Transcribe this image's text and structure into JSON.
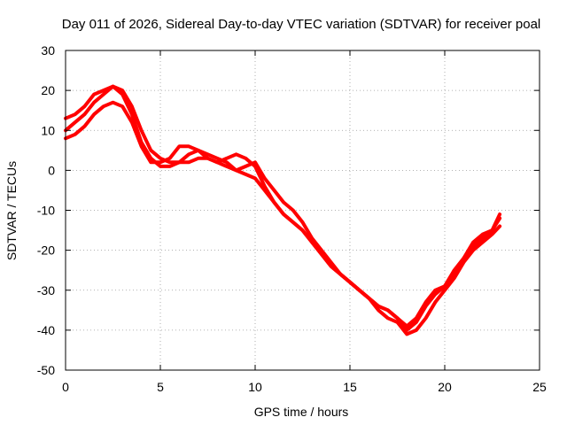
{
  "chart_data": {
    "type": "line",
    "title": "Day 011 of 2026, Sidereal Day-to-day VTEC variation (SDTVAR) for receiver poal",
    "xlabel": "GPS time / hours",
    "ylabel": "SDTVAR / TECUs",
    "xlim": [
      0,
      25
    ],
    "ylim": [
      -50,
      30
    ],
    "xticks": [
      0,
      5,
      10,
      15,
      20,
      25
    ],
    "yticks": [
      -50,
      -40,
      -30,
      -20,
      -10,
      0,
      10,
      20,
      30
    ],
    "grid": true,
    "series": [
      {
        "name": "trace-1",
        "color": "#ff0000",
        "x": [
          0.0,
          0.5,
          1.0,
          1.5,
          2.0,
          2.5,
          3.0,
          3.5,
          4.0,
          4.5,
          5.0,
          5.5,
          6.0,
          6.5,
          7.0,
          7.5,
          8.0,
          8.5,
          9.0,
          9.5,
          10.0,
          10.5,
          11.0,
          11.5,
          12.0,
          12.5,
          13.0,
          13.5,
          14.0,
          14.5,
          15.0,
          15.5,
          16.0,
          16.5,
          17.0,
          17.5,
          18.0,
          18.5,
          19.0,
          19.5,
          20.0,
          20.5,
          21.0,
          21.5,
          22.0,
          22.5,
          22.9
        ],
        "y": [
          13,
          14,
          16,
          19,
          20,
          21,
          20,
          16,
          10,
          5,
          3,
          2,
          2,
          2,
          3,
          3,
          2,
          1,
          0,
          1,
          2,
          -2,
          -5,
          -8,
          -10,
          -13,
          -17,
          -20,
          -23,
          -26,
          -28,
          -30,
          -32,
          -34,
          -35,
          -37,
          -40,
          -38,
          -34,
          -31,
          -29,
          -25,
          -22,
          -18,
          -16,
          -15,
          -11
        ]
      },
      {
        "name": "trace-2",
        "color": "#ff0000",
        "x": [
          0.0,
          0.5,
          1.0,
          1.5,
          2.0,
          2.5,
          3.0,
          3.5,
          4.0,
          4.5,
          5.0,
          5.5,
          6.0,
          6.5,
          7.0,
          7.5,
          8.0,
          8.5,
          9.0,
          9.5,
          10.0,
          10.5,
          11.0,
          11.5,
          12.0,
          12.5,
          13.0,
          13.5,
          14.0,
          14.5,
          15.0,
          15.5,
          16.0,
          16.5,
          17.0,
          17.5,
          18.0,
          18.5,
          19.0,
          19.5,
          20.0,
          20.5,
          21.0,
          21.5,
          22.0,
          22.5,
          22.9
        ],
        "y": [
          10,
          12,
          14,
          17,
          19,
          21,
          19,
          14,
          7,
          3,
          1,
          1,
          2,
          4,
          5,
          4,
          3,
          2,
          0,
          -1,
          -2,
          -5,
          -8,
          -11,
          -13,
          -15,
          -18,
          -21,
          -24,
          -26,
          -28,
          -30,
          -32,
          -34,
          -35,
          -37,
          -39,
          -37,
          -33,
          -30,
          -29,
          -26,
          -22,
          -19,
          -17,
          -15,
          -12
        ]
      },
      {
        "name": "trace-3",
        "color": "#ff0000",
        "x": [
          0.0,
          0.5,
          1.0,
          1.5,
          2.0,
          2.5,
          3.0,
          3.5,
          4.0,
          4.5,
          5.0,
          5.5,
          6.0,
          6.5,
          7.0,
          7.5,
          8.0,
          8.5,
          9.0,
          9.5,
          10.0,
          10.5,
          11.0,
          11.5,
          12.0,
          12.5,
          13.0,
          13.5,
          14.0,
          14.5,
          15.0,
          15.5,
          16.0,
          16.5,
          17.0,
          17.5,
          18.0,
          18.5,
          19.0,
          19.5,
          20.0,
          20.5,
          21.0,
          21.5,
          22.0,
          22.5,
          22.9
        ],
        "y": [
          8,
          9,
          11,
          14,
          16,
          17,
          16,
          12,
          6,
          2,
          2,
          3,
          6,
          6,
          5,
          3,
          2,
          3,
          4,
          3,
          1,
          -4,
          -8,
          -11,
          -13,
          -15,
          -18,
          -21,
          -24,
          -26,
          -28,
          -30,
          -32,
          -35,
          -37,
          -38,
          -41,
          -40,
          -37,
          -33,
          -30,
          -27,
          -23,
          -20,
          -18,
          -16,
          -14
        ]
      }
    ]
  }
}
